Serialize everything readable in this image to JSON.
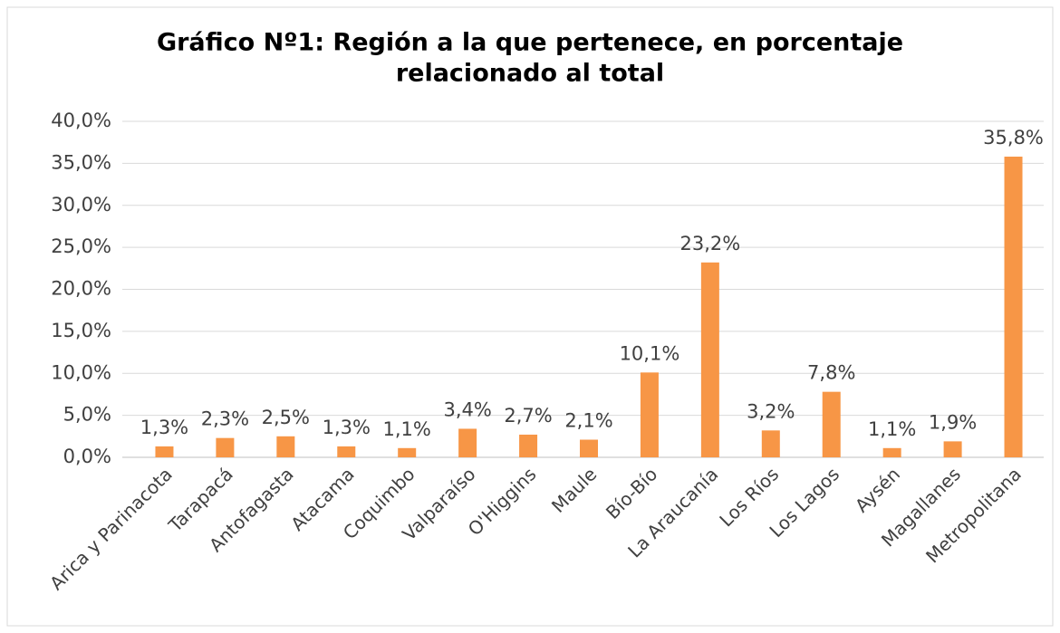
{
  "chart_data": {
    "type": "bar",
    "title": [
      "Gráfico Nº1: Región a la que pertenece, en porcentaje",
      "relacionado al total"
    ],
    "categories": [
      "Arica y Parinacota",
      "Tarapacá",
      "Antofagasta",
      "Atacama",
      "Coquimbo",
      "Valparaíso",
      "O'Higgins",
      "Maule",
      "Bío-Bío",
      "La Araucanía",
      "Los Ríos",
      "Los Lagos",
      "Aysén",
      "Magallanes",
      "Metropolitana"
    ],
    "values": [
      1.3,
      2.3,
      2.5,
      1.3,
      1.1,
      3.4,
      2.7,
      2.1,
      10.1,
      23.2,
      3.2,
      7.8,
      1.1,
      1.9,
      35.8
    ],
    "value_labels": [
      "1,3%",
      "2,3%",
      "2,5%",
      "1,3%",
      "1,1%",
      "3,4%",
      "2,7%",
      "2,1%",
      "10,1%",
      "23,2%",
      "3,2%",
      "7,8%",
      "1,1%",
      "1,9%",
      "35,8%"
    ],
    "color": "#f79646",
    "ylim": [
      0,
      40
    ],
    "yticks": [
      {
        "value": 0,
        "label": "0,0%"
      },
      {
        "value": 5,
        "label": "5,0%"
      },
      {
        "value": 10,
        "label": "10,0%"
      },
      {
        "value": 15,
        "label": "15,0%"
      },
      {
        "value": 20,
        "label": "20,0%"
      },
      {
        "value": 25,
        "label": "25,0%"
      },
      {
        "value": 30,
        "label": "30,0%"
      },
      {
        "value": 35,
        "label": "35,0%"
      },
      {
        "value": 40,
        "label": "40,0%"
      }
    ],
    "grid": true
  }
}
